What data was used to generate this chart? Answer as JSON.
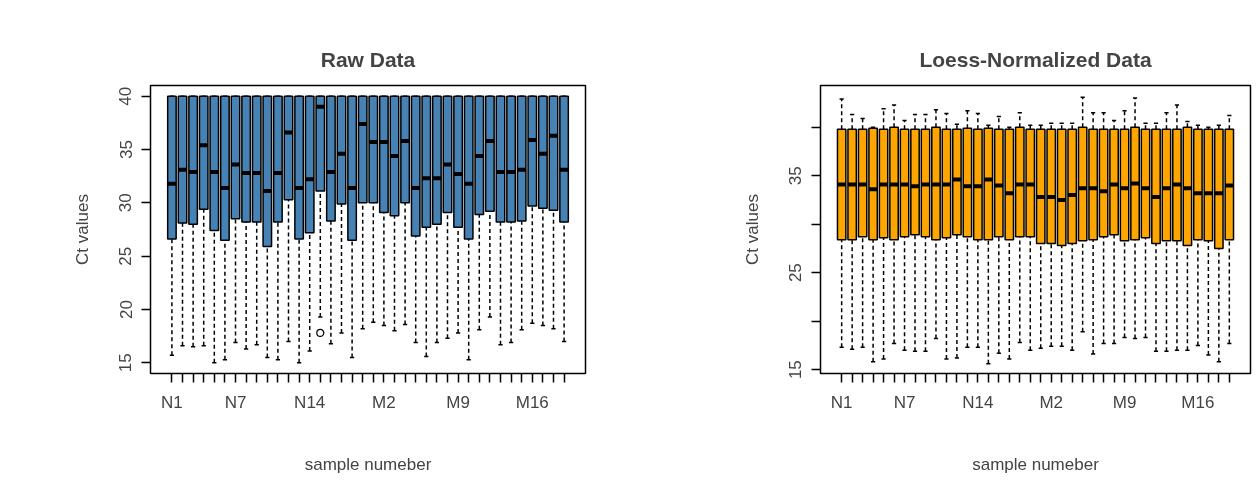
{
  "chart_data": [
    {
      "type": "box",
      "title": "Raw Data",
      "xlabel": "sample numeber",
      "ylabel": "Ct values",
      "categories": [
        "N1",
        null,
        null,
        null,
        null,
        null,
        "N7",
        null,
        null,
        null,
        null,
        null,
        null,
        "N14",
        null,
        null,
        null,
        null,
        null,
        null,
        "M2",
        null,
        null,
        null,
        null,
        null,
        null,
        "M9",
        null,
        null,
        null,
        null,
        null,
        null,
        "M16",
        null,
        null,
        null
      ],
      "ylim": [
        14,
        41
      ],
      "yticks": [
        15,
        20,
        25,
        30,
        35,
        40
      ],
      "series": [
        {
          "color": "#4682b4",
          "boxes": [
            {
              "low": 15.7,
              "q1": 26.6,
              "median": 31.8,
              "q3": 40,
              "high": 40
            },
            {
              "low": 16.6,
              "q1": 28.1,
              "median": 33.1,
              "q3": 40,
              "high": 40
            },
            {
              "low": 16.5,
              "q1": 28.0,
              "median": 32.9,
              "q3": 40,
              "high": 40
            },
            {
              "low": 16.6,
              "q1": 29.4,
              "median": 35.4,
              "q3": 40,
              "high": 40
            },
            {
              "low": 15.0,
              "q1": 27.4,
              "median": 32.9,
              "q3": 40,
              "high": 40
            },
            {
              "low": 15.3,
              "q1": 26.5,
              "median": 31.4,
              "q3": 40,
              "high": 40
            },
            {
              "low": 16.9,
              "q1": 28.5,
              "median": 33.6,
              "q3": 40,
              "high": 40
            },
            {
              "low": 16.3,
              "q1": 28.2,
              "median": 32.8,
              "q3": 40,
              "high": 40
            },
            {
              "low": 16.7,
              "q1": 28.2,
              "median": 32.8,
              "q3": 40,
              "high": 40
            },
            {
              "low": 15.5,
              "q1": 25.9,
              "median": 31.1,
              "q3": 40,
              "high": 40
            },
            {
              "low": 15.3,
              "q1": 28.2,
              "median": 32.8,
              "q3": 40,
              "high": 40
            },
            {
              "low": 17.0,
              "q1": 30.3,
              "median": 36.6,
              "q3": 40,
              "high": 40
            },
            {
              "low": 15.0,
              "q1": 26.6,
              "median": 31.4,
              "q3": 40,
              "high": 40
            },
            {
              "low": 16.1,
              "q1": 27.2,
              "median": 32.2,
              "q3": 40,
              "high": 40
            },
            {
              "low": 19.3,
              "q1": 31.1,
              "median": 39.0,
              "q3": 40,
              "high": 40,
              "outliers": [
                17.8
              ]
            },
            {
              "low": 16.8,
              "q1": 28.3,
              "median": 32.9,
              "q3": 40,
              "high": 40
            },
            {
              "low": 17.8,
              "q1": 29.9,
              "median": 34.6,
              "q3": 40,
              "high": 40
            },
            {
              "low": 15.5,
              "q1": 26.5,
              "median": 31.4,
              "q3": 40,
              "high": 40
            },
            {
              "low": 18.2,
              "q1": 30.0,
              "median": 37.4,
              "q3": 40,
              "high": 40
            },
            {
              "low": 18.8,
              "q1": 30.0,
              "median": 35.7,
              "q3": 40,
              "high": 40
            },
            {
              "low": 18.5,
              "q1": 29.1,
              "median": 35.7,
              "q3": 40,
              "high": 40
            },
            {
              "low": 18.0,
              "q1": 28.8,
              "median": 34.4,
              "q3": 40,
              "high": 40
            },
            {
              "low": 18.6,
              "q1": 30.0,
              "median": 35.8,
              "q3": 40,
              "high": 40
            },
            {
              "low": 16.9,
              "q1": 26.9,
              "median": 31.4,
              "q3": 40,
              "high": 40
            },
            {
              "low": 15.6,
              "q1": 27.7,
              "median": 32.3,
              "q3": 40,
              "high": 40
            },
            {
              "low": 16.9,
              "q1": 28.0,
              "median": 32.3,
              "q3": 40,
              "high": 40
            },
            {
              "low": 17.3,
              "q1": 29.1,
              "median": 33.6,
              "q3": 40,
              "high": 40
            },
            {
              "low": 17.8,
              "q1": 27.7,
              "median": 32.7,
              "q3": 40,
              "high": 40
            },
            {
              "low": 15.3,
              "q1": 26.6,
              "median": 31.8,
              "q3": 40,
              "high": 40
            },
            {
              "low": 18.1,
              "q1": 28.9,
              "median": 34.4,
              "q3": 40,
              "high": 40
            },
            {
              "low": 19.3,
              "q1": 29.2,
              "median": 35.8,
              "q3": 40,
              "high": 40
            },
            {
              "low": 16.7,
              "q1": 28.2,
              "median": 32.9,
              "q3": 40,
              "high": 40
            },
            {
              "low": 16.9,
              "q1": 28.2,
              "median": 32.9,
              "q3": 40,
              "high": 40
            },
            {
              "low": 18.1,
              "q1": 28.3,
              "median": 33.1,
              "q3": 40,
              "high": 40
            },
            {
              "low": 18.7,
              "q1": 29.7,
              "median": 35.9,
              "q3": 40,
              "high": 40
            },
            {
              "low": 18.5,
              "q1": 29.5,
              "median": 34.6,
              "q3": 40,
              "high": 40
            },
            {
              "low": 18.2,
              "q1": 29.3,
              "median": 36.3,
              "q3": 40,
              "high": 40
            },
            {
              "low": 17.0,
              "q1": 28.2,
              "median": 33.1,
              "q3": 40,
              "high": 40
            }
          ]
        }
      ]
    },
    {
      "type": "box",
      "title": "Loess-Normalized Data",
      "xlabel": "sample numeber",
      "ylabel": "Ct values",
      "categories": [
        "N1",
        null,
        null,
        null,
        null,
        null,
        "N7",
        null,
        null,
        null,
        null,
        null,
        null,
        "N14",
        null,
        null,
        null,
        null,
        null,
        null,
        "M2",
        null,
        null,
        null,
        null,
        null,
        null,
        "M9",
        null,
        null,
        null,
        null,
        null,
        null,
        "M16",
        null,
        null,
        null
      ],
      "ylim": [
        14.6,
        44.3
      ],
      "yticks": [
        15,
        {
          "value": 20,
          "label": null
        },
        25,
        {
          "value": 30,
          "label": null
        },
        35,
        {
          "value": 40,
          "label": null
        }
      ],
      "series": [
        {
          "color": "#ffa500",
          "boxes": [
            {
              "low": 17.3,
              "q1": 28.4,
              "median": 34.1,
              "q3": 39.8,
              "high": 42.9
            },
            {
              "low": 17.1,
              "q1": 28.4,
              "median": 34.1,
              "q3": 39.8,
              "high": 41.3
            },
            {
              "low": 17.3,
              "q1": 28.7,
              "median": 34.1,
              "q3": 39.8,
              "high": 40.9
            },
            {
              "low": 15.8,
              "q1": 28.4,
              "median": 33.6,
              "q3": 39.9,
              "high": 40.0
            },
            {
              "low": 16.1,
              "q1": 28.6,
              "median": 34.1,
              "q3": 39.8,
              "high": 41.9
            },
            {
              "low": 17.7,
              "q1": 28.4,
              "median": 34.1,
              "q3": 40.0,
              "high": 42.3
            },
            {
              "low": 17.0,
              "q1": 28.7,
              "median": 34.1,
              "q3": 39.8,
              "high": 40.7
            },
            {
              "low": 16.9,
              "q1": 28.9,
              "median": 33.9,
              "q3": 39.8,
              "high": 41.3
            },
            {
              "low": 16.9,
              "q1": 28.7,
              "median": 34.1,
              "q3": 39.8,
              "high": 41.3
            },
            {
              "low": 18.2,
              "q1": 28.4,
              "median": 34.1,
              "q3": 40.0,
              "high": 41.8
            },
            {
              "low": 16.1,
              "q1": 28.6,
              "median": 34.1,
              "q3": 39.8,
              "high": 41.4
            },
            {
              "low": 16.2,
              "q1": 28.9,
              "median": 34.6,
              "q3": 39.8,
              "high": 40.3
            },
            {
              "low": 17.3,
              "q1": 28.7,
              "median": 33.9,
              "q3": 39.9,
              "high": 41.7
            },
            {
              "low": 17.3,
              "q1": 28.4,
              "median": 33.9,
              "q3": 39.8,
              "high": 41.4
            },
            {
              "low": 15.6,
              "q1": 28.4,
              "median": 34.6,
              "q3": 39.9,
              "high": 40.2
            },
            {
              "low": 16.7,
              "q1": 28.7,
              "median": 34.0,
              "q3": 39.8,
              "high": 41.1
            },
            {
              "low": 16.1,
              "q1": 28.4,
              "median": 33.2,
              "q3": 39.8,
              "high": 40.0
            },
            {
              "low": 17.8,
              "q1": 28.7,
              "median": 34.1,
              "q3": 40.0,
              "high": 41.5
            },
            {
              "low": 17.0,
              "q1": 28.7,
              "median": 34.1,
              "q3": 39.8,
              "high": 40.2
            },
            {
              "low": 17.2,
              "q1": 28.0,
              "median": 32.8,
              "q3": 39.8,
              "high": 40.2
            },
            {
              "low": 17.4,
              "q1": 28.0,
              "median": 32.8,
              "q3": 39.8,
              "high": 40.4
            },
            {
              "low": 17.4,
              "q1": 27.8,
              "median": 32.5,
              "q3": 39.8,
              "high": 40.4
            },
            {
              "low": 17.0,
              "q1": 28.0,
              "median": 33.0,
              "q3": 39.8,
              "high": 40.4
            },
            {
              "low": 18.9,
              "q1": 28.3,
              "median": 33.7,
              "q3": 40.0,
              "high": 43.1
            },
            {
              "low": 16.6,
              "q1": 28.4,
              "median": 33.7,
              "q3": 39.8,
              "high": 41.5
            },
            {
              "low": 17.7,
              "q1": 28.7,
              "median": 33.4,
              "q3": 39.8,
              "high": 41.5
            },
            {
              "low": 17.7,
              "q1": 28.9,
              "median": 34.1,
              "q3": 39.8,
              "high": 40.7
            },
            {
              "low": 18.3,
              "q1": 28.3,
              "median": 33.7,
              "q3": 39.8,
              "high": 41.7
            },
            {
              "low": 18.2,
              "q1": 28.4,
              "median": 34.2,
              "q3": 40.0,
              "high": 43.0
            },
            {
              "low": 18.3,
              "q1": 28.6,
              "median": 33.7,
              "q3": 39.8,
              "high": 40.4
            },
            {
              "low": 16.9,
              "q1": 28.0,
              "median": 32.8,
              "q3": 39.8,
              "high": 40.4
            },
            {
              "low": 16.9,
              "q1": 28.3,
              "median": 33.7,
              "q3": 39.8,
              "high": 41.5
            },
            {
              "low": 17.0,
              "q1": 28.3,
              "median": 34.1,
              "q3": 39.8,
              "high": 42.3
            },
            {
              "low": 17.0,
              "q1": 27.8,
              "median": 33.7,
              "q3": 40.0,
              "high": 40.6
            },
            {
              "low": 17.5,
              "q1": 28.4,
              "median": 33.2,
              "q3": 39.8,
              "high": 40.2
            },
            {
              "low": 16.5,
              "q1": 28.3,
              "median": 33.2,
              "q3": 39.8,
              "high": 40.0
            },
            {
              "low": 15.8,
              "q1": 27.5,
              "median": 33.2,
              "q3": 39.8,
              "high": 40.2
            },
            {
              "low": 17.7,
              "q1": 28.4,
              "median": 34.0,
              "q3": 39.8,
              "high": 41.2
            }
          ]
        }
      ]
    }
  ]
}
